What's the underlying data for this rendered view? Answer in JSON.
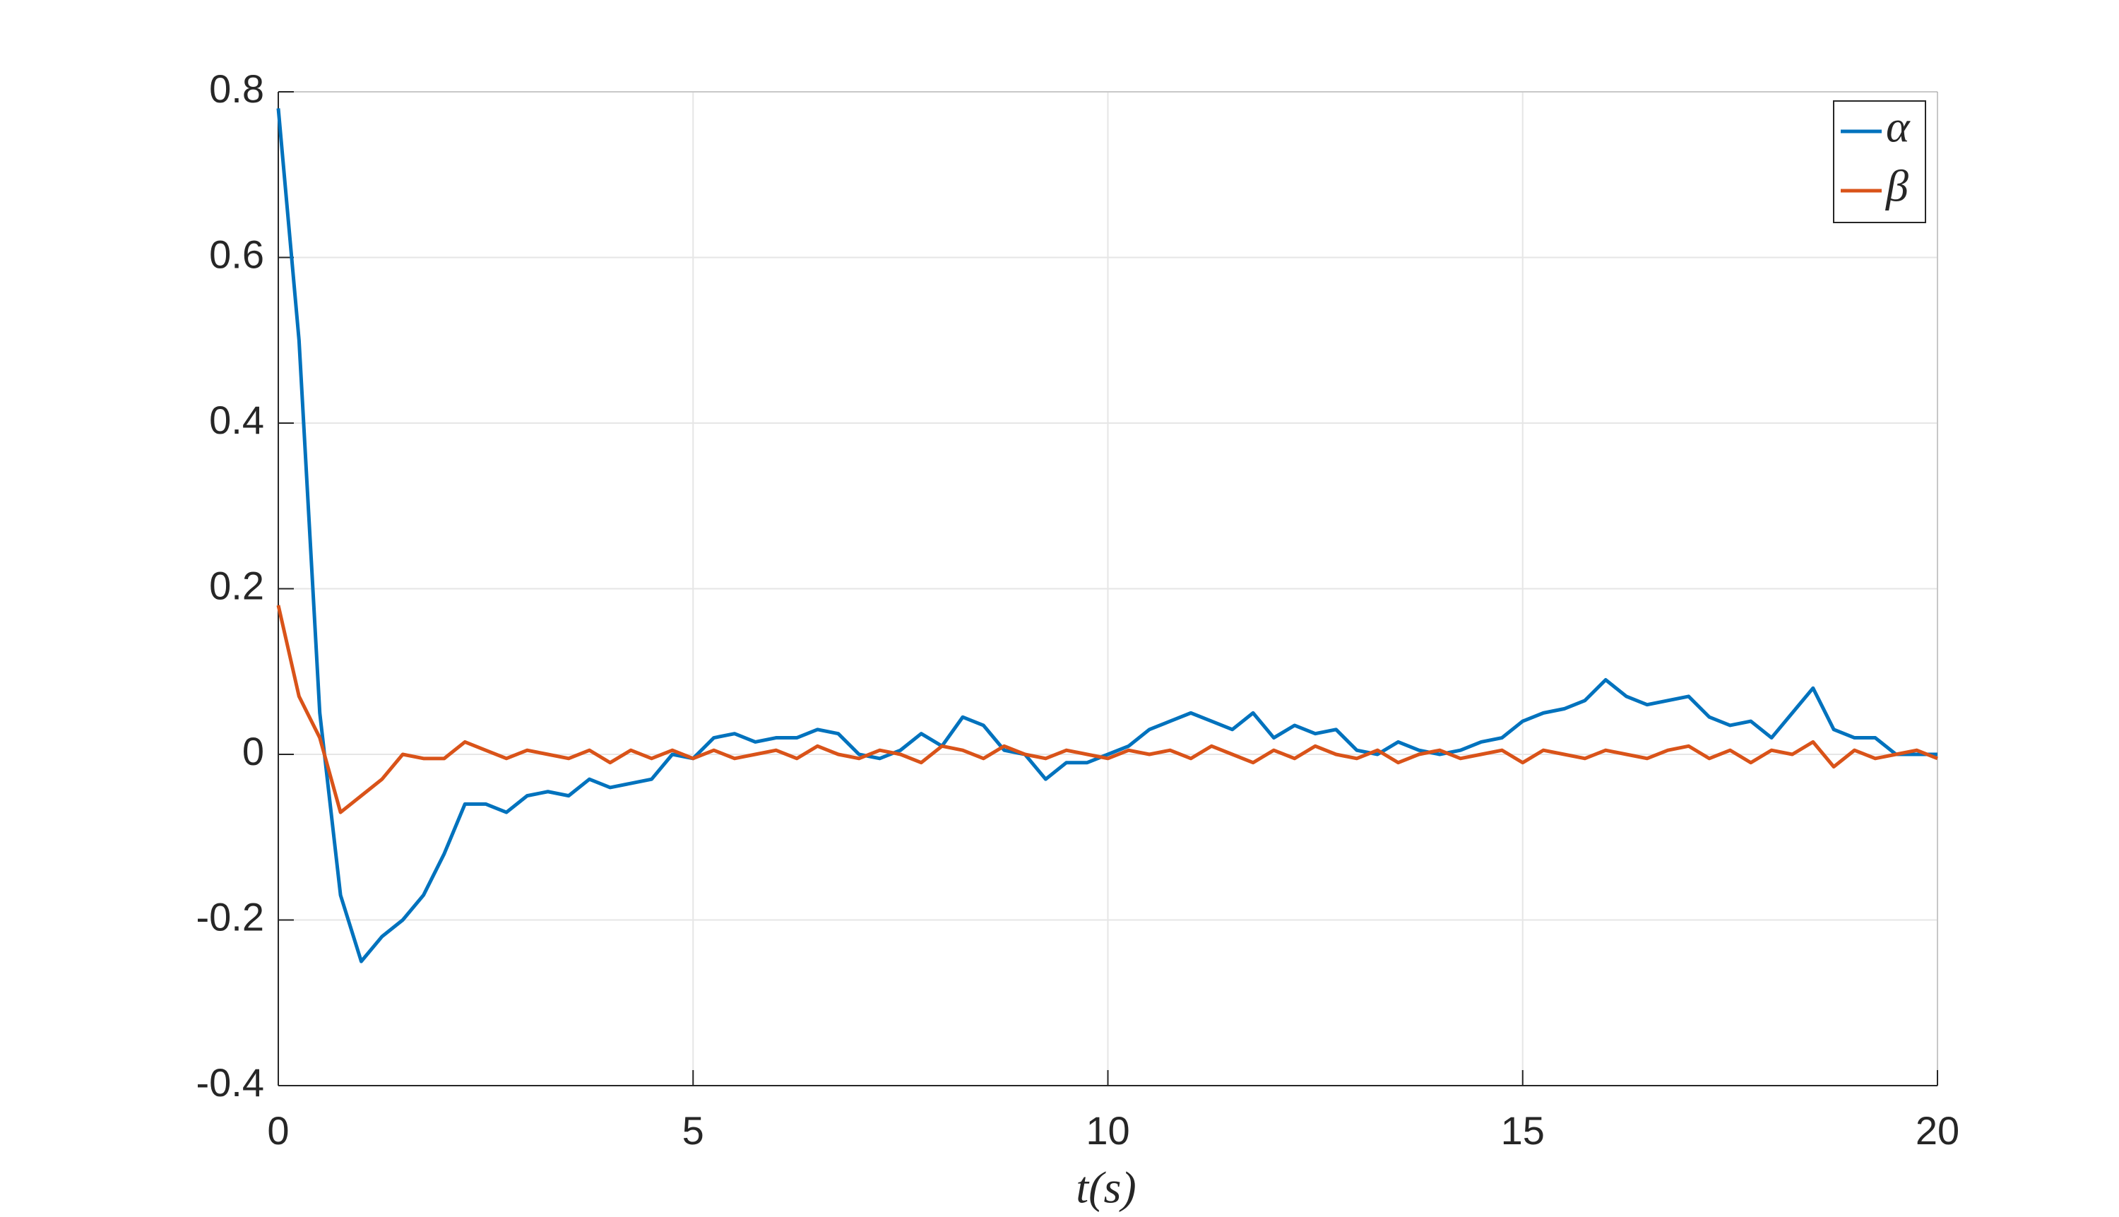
{
  "chart_data": {
    "type": "line",
    "x_label": "t(s)",
    "x": [
      0,
      0.25,
      0.5,
      0.75,
      1,
      1.25,
      1.5,
      1.75,
      2,
      2.25,
      2.5,
      2.75,
      3,
      3.25,
      3.5,
      3.75,
      4,
      4.25,
      4.5,
      4.75,
      5,
      5.25,
      5.5,
      5.75,
      6,
      6.25,
      6.5,
      6.75,
      7,
      7.25,
      7.5,
      7.75,
      8,
      8.25,
      8.5,
      8.75,
      9,
      9.25,
      9.5,
      9.75,
      10,
      10.25,
      10.5,
      10.75,
      11,
      11.25,
      11.5,
      11.75,
      12,
      12.25,
      12.5,
      12.75,
      13,
      13.25,
      13.5,
      13.75,
      14,
      14.25,
      14.5,
      14.75,
      15,
      15.25,
      15.5,
      15.75,
      16,
      16.25,
      16.5,
      16.75,
      17,
      17.25,
      17.5,
      17.75,
      18,
      18.25,
      18.5,
      18.75,
      19,
      19.25,
      19.5,
      19.75,
      20
    ],
    "series": [
      {
        "name": "α",
        "color": "#0072bd",
        "values": [
          0.78,
          0.5,
          0.05,
          -0.17,
          -0.25,
          -0.22,
          -0.2,
          -0.17,
          -0.12,
          -0.06,
          -0.06,
          -0.07,
          -0.05,
          -0.045,
          -0.05,
          -0.03,
          -0.04,
          -0.035,
          -0.03,
          0.0,
          -0.005,
          0.02,
          0.025,
          0.015,
          0.02,
          0.02,
          0.03,
          0.025,
          0.0,
          -0.005,
          0.005,
          0.025,
          0.01,
          0.045,
          0.035,
          0.005,
          0.0,
          -0.03,
          -0.01,
          -0.01,
          0.0,
          0.01,
          0.03,
          0.04,
          0.05,
          0.04,
          0.03,
          0.05,
          0.02,
          0.035,
          0.025,
          0.03,
          0.005,
          0.0,
          0.015,
          0.005,
          0.0,
          0.005,
          0.015,
          0.02,
          0.04,
          0.05,
          0.055,
          0.065,
          0.09,
          0.07,
          0.06,
          0.065,
          0.07,
          0.045,
          0.035,
          0.04,
          0.02,
          0.05,
          0.08,
          0.03,
          0.02,
          0.02,
          0.0,
          0.0,
          0.0
        ]
      },
      {
        "name": "β",
        "color": "#d95319",
        "values": [
          0.18,
          0.07,
          0.02,
          -0.07,
          -0.05,
          -0.03,
          0.0,
          -0.005,
          -0.005,
          0.015,
          0.005,
          -0.005,
          0.005,
          0.0,
          -0.005,
          0.005,
          -0.01,
          0.005,
          -0.005,
          0.005,
          -0.005,
          0.005,
          -0.005,
          0.0,
          0.005,
          -0.005,
          0.01,
          0.0,
          -0.005,
          0.005,
          0.0,
          -0.01,
          0.01,
          0.005,
          -0.005,
          0.01,
          0.0,
          -0.005,
          0.005,
          0.0,
          -0.005,
          0.005,
          0.0,
          0.005,
          -0.005,
          0.01,
          0.0,
          -0.01,
          0.005,
          -0.005,
          0.01,
          0.0,
          -0.005,
          0.005,
          -0.01,
          0.0,
          0.005,
          -0.005,
          0.0,
          0.005,
          -0.01,
          0.005,
          0.0,
          -0.005,
          0.005,
          0.0,
          -0.005,
          0.005,
          0.01,
          -0.005,
          0.005,
          -0.01,
          0.005,
          0.0,
          0.015,
          -0.015,
          0.005,
          -0.005,
          0.0,
          0.005,
          -0.005
        ]
      }
    ],
    "xlim": [
      0,
      20
    ],
    "xticks": [
      0,
      5,
      10,
      15,
      20
    ],
    "ylim": [
      -0.4,
      0.8
    ],
    "yticks": [
      -0.4,
      -0.2,
      0,
      0.2,
      0.4,
      0.6,
      0.8
    ],
    "grid": true,
    "legend": "northeast"
  }
}
